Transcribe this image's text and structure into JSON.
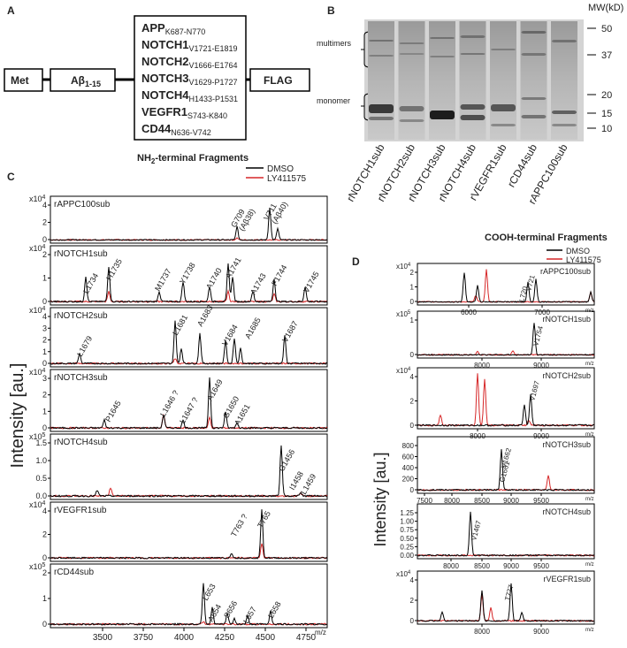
{
  "panel_a": {
    "label": "A",
    "met": "Met",
    "abeta": {
      "main": "Aβ",
      "sub": "1-15"
    },
    "flag": "FLAG",
    "fragments": [
      {
        "name": "APP",
        "range": "K687-N770"
      },
      {
        "name": "NOTCH1",
        "range": "V1721-E1819"
      },
      {
        "name": "NOTCH2",
        "range": "V1666-E1764"
      },
      {
        "name": "NOTCH3",
        "range": "V1629-P1727"
      },
      {
        "name": "NOTCH4",
        "range": "H1433-P1531"
      },
      {
        "name": "VEGFR1",
        "range": "S743-K840"
      },
      {
        "name": "CD44",
        "range": "N636-V742"
      }
    ],
    "caption": {
      "main": "NH",
      "sub": "2",
      "rest": "-terminal Fragments"
    }
  },
  "panel_b": {
    "label": "B",
    "mw_title": "MW(kD)",
    "mw_markers": [
      "50",
      "37",
      "20",
      "15",
      "10"
    ],
    "bands": [
      "multimers",
      "monomer"
    ],
    "lanes": [
      "rNOTCH1sub",
      "rNOTCH2sub",
      "rNOTCH3sub",
      "rNOTCH4sub",
      "rVEGFR1sub",
      "rCD44sub",
      "rAPPC100sub"
    ]
  },
  "panel_c": {
    "label": "C",
    "y_label": "Intensity [au.]",
    "x_unit": "m/z",
    "legend": [
      {
        "name": "DMSO",
        "color": "#000000"
      },
      {
        "name": "LY411575",
        "color": "#d62728"
      }
    ],
    "x_ticks": [
      "3500",
      "3750",
      "4000",
      "4250",
      "4500",
      "4750"
    ],
    "plots": [
      {
        "name": "rAPPC100sub",
        "scale": {
          "base": "x10",
          "exp": "4"
        },
        "y_ticks": [
          "4",
          "2",
          "0"
        ],
        "peaks": [
          "G709",
          "(Aβ38)",
          "V711",
          "(Aβ40)"
        ]
      },
      {
        "name": "rNOTCH1sub",
        "scale": {
          "base": "x10",
          "exp": "4"
        },
        "y_ticks": [
          "2",
          "1",
          "0"
        ],
        "peaks": [
          "L1734",
          "H1735",
          "M1737",
          "Y1738",
          "A1740",
          "A1741",
          "A1743",
          "F1744",
          "V1745"
        ]
      },
      {
        "name": "rNOTCH2sub",
        "scale": {
          "base": "x10",
          "exp": "4"
        },
        "y_ticks": [
          "4",
          "3",
          "2",
          "1",
          "0"
        ],
        "peaks": [
          "L1679",
          "L1681",
          "A1683",
          "V1684",
          "A1685",
          "V1687"
        ]
      },
      {
        "name": "rNOTCH3sub",
        "scale": {
          "base": "x10",
          "exp": "4"
        },
        "y_ticks": [
          "3",
          "2",
          "1",
          "0"
        ],
        "peaks": [
          "P1645",
          "L1646 ?",
          "L1647 ?",
          "A1649",
          "G1650",
          "A1651"
        ]
      },
      {
        "name": "rNOTCH4sub",
        "scale": {
          "base": "x10",
          "exp": "5"
        },
        "y_ticks": [
          "1.5",
          "1.0",
          "0.5",
          "0.0"
        ],
        "peaks": [
          "G1456",
          "I1458",
          "L1459"
        ]
      },
      {
        "name": "rVEGFR1sub",
        "scale": {
          "base": "x10",
          "exp": "4"
        },
        "y_ticks": [
          "4",
          "2",
          "0"
        ],
        "peaks": [
          "T763 ?",
          "T765"
        ]
      },
      {
        "name": "rCD44sub",
        "scale": {
          "base": "x10",
          "exp": "5"
        },
        "y_ticks": [
          "2",
          "1",
          "0"
        ],
        "peaks": [
          "L653",
          "A654",
          "S656",
          "L657",
          "L658"
        ]
      }
    ]
  },
  "panel_d": {
    "label": "D",
    "title": "COOH-terminal Fragments",
    "y_label": "Intensity [au.]",
    "x_unit": "m/z",
    "legend": [
      {
        "name": "DMSO",
        "color": "#000000"
      },
      {
        "name": "LY411575",
        "color": "#d62728"
      }
    ],
    "plots": [
      {
        "name": "rAPPC100sub",
        "scale": {
          "base": "x10",
          "exp": "4"
        },
        "y_ticks": [
          "2",
          "1",
          "0"
        ],
        "x_ticks": [
          "6000",
          "7000"
        ],
        "peaks": [
          "V721",
          "L720"
        ]
      },
      {
        "name": "rNOTCH1sub",
        "scale": {
          "base": "x10",
          "exp": "5"
        },
        "y_ticks": [
          "1",
          "0"
        ],
        "x_ticks": [
          "8000",
          "9000"
        ],
        "peaks": [
          "V1754"
        ]
      },
      {
        "name": "rNOTCH2sub",
        "scale": {
          "base": "x10",
          "exp": "4"
        },
        "y_ticks": [
          "4",
          "2",
          "0"
        ],
        "x_ticks": [
          "8000",
          "9000"
        ],
        "peaks": [
          "V1697"
        ]
      },
      {
        "name": "rNOTCH3sub",
        "y_ticks": [
          "800",
          "600",
          "400",
          "200",
          "0"
        ],
        "x_ticks": [
          "7500",
          "8000",
          "8500",
          "9000",
          "9500"
        ],
        "peaks": [
          "V1662",
          "G1661"
        ]
      },
      {
        "name": "rNOTCH4sub",
        "y_ticks": [
          "1.25",
          "1.00",
          "0.75",
          "0.50",
          "0.25",
          "0.00"
        ],
        "x_ticks": [
          "8000",
          "8500",
          "9000",
          "9500"
        ],
        "peaks": [
          "V1467"
        ]
      },
      {
        "name": "rVEGFR1sub",
        "scale": {
          "base": "x10",
          "exp": "4"
        },
        "y_ticks": [
          "4",
          "2",
          "0"
        ],
        "x_ticks": [
          "8000",
          "9000"
        ],
        "peaks": [
          "T777"
        ]
      }
    ]
  }
}
